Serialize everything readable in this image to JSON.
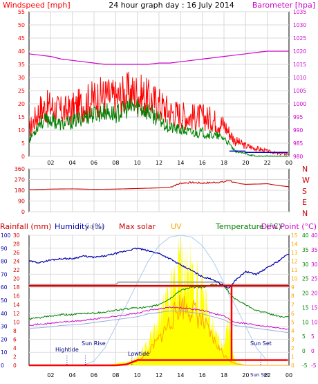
{
  "title": "24 hour graph day : 16 July 2014",
  "colors": {
    "windspeed": "#ff0000",
    "gust": "#008000",
    "barometer": "#cc00cc",
    "direction": "#cc0000",
    "rainfall": "#ff0000",
    "humidity": "#0000aa",
    "solar": "#aaaaaa",
    "maxsolar": "#aaccee",
    "uv": "#ffa500",
    "temperature": "#008000",
    "dewpoint": "#cc00cc",
    "sunfill": "#ffff00"
  },
  "x_ticks": [
    "02",
    "04",
    "06",
    "08",
    "10",
    "12",
    "14",
    "16",
    "18",
    "20",
    "22",
    "00"
  ],
  "chart_data": [
    {
      "type": "line",
      "id": "wind",
      "left_label": "Windspeed [mph]",
      "right_label": "Barometer [hpa]",
      "yticks_left": [
        "0",
        "5",
        "10",
        "15",
        "20",
        "25",
        "30",
        "35",
        "40",
        "45",
        "50",
        "55"
      ],
      "ylim_left": [
        0,
        55
      ],
      "yticks_right": [
        "980",
        "985",
        "990",
        "995",
        "1000",
        "1005",
        "1010",
        "1015",
        "1020",
        "1025",
        "1030",
        "1035"
      ],
      "ylim_right": [
        980,
        1035
      ],
      "hours": [
        0,
        1,
        2,
        3,
        4,
        5,
        6,
        7,
        8,
        9,
        10,
        11,
        12,
        13,
        14,
        15,
        16,
        17,
        18,
        19,
        20,
        21,
        22,
        23,
        24
      ],
      "series": [
        {
          "key": "windspeed",
          "values": [
            10,
            18,
            19,
            17,
            18,
            20,
            22,
            23,
            22,
            24,
            24,
            22,
            20,
            17,
            16,
            15,
            15,
            14,
            12,
            6,
            4,
            3,
            2,
            1,
            1
          ]
        },
        {
          "key": "gust",
          "values": [
            6,
            13,
            14,
            12,
            13,
            15,
            16,
            17,
            16,
            18,
            19,
            17,
            14,
            11,
            10,
            9,
            9,
            8,
            7,
            2,
            1,
            0,
            0,
            0,
            0
          ]
        },
        {
          "key": "barometer",
          "values": [
            1019,
            1018.5,
            1018,
            1017,
            1016.5,
            1016,
            1015.5,
            1015,
            1015,
            1015,
            1015,
            1015,
            1015.5,
            1015.5,
            1016,
            1016.5,
            1017,
            1017.5,
            1018,
            1018.5,
            1019,
            1019.5,
            1020,
            1020,
            1020
          ]
        }
      ]
    },
    {
      "type": "line",
      "id": "direction",
      "yticks_left": [
        "0",
        "90",
        "180",
        "270",
        "360"
      ],
      "ylim": [
        0,
        360
      ],
      "compass": [
        "N",
        "W",
        "S",
        "E",
        "N"
      ],
      "hours": [
        0,
        2,
        4,
        6,
        8,
        10,
        12,
        13,
        14,
        15,
        16,
        17,
        18,
        18.5,
        19,
        20,
        21,
        22,
        23,
        24
      ],
      "values": [
        185,
        190,
        192,
        188,
        190,
        195,
        200,
        205,
        240,
        245,
        240,
        245,
        250,
        265,
        240,
        230,
        232,
        235,
        220,
        210
      ]
    },
    {
      "type": "line",
      "id": "multi",
      "left_labels": {
        "rainfall": "Rainfall (mm)",
        "humidity": "Humidity (%)"
      },
      "solar_label": "Solar",
      "maxsolar_label": "Max solar",
      "uv_label": "UV",
      "temp_label": "Temperature (°C)",
      "dew_label": "Dew Point (°C)",
      "hum_ticks": [
        "0",
        "10",
        "20",
        "30",
        "40",
        "50",
        "60",
        "70",
        "80",
        "90",
        "100"
      ],
      "rain_ticks": [
        "0",
        "2",
        "4",
        "6",
        "8",
        "10",
        "12",
        "14",
        "16",
        "18",
        "20",
        "22",
        "24",
        "26",
        "28",
        "30"
      ],
      "uv_ticks": [
        "0",
        "1",
        "2",
        "3",
        "4",
        "5",
        "6",
        "7",
        "8",
        "9",
        "10",
        "11",
        "12",
        "13",
        "14",
        "15"
      ],
      "temp_ticks": [
        "-5",
        "0",
        "5",
        "10",
        "15",
        "20",
        "25",
        "30",
        "35",
        "40"
      ],
      "temp_ticks2": [
        "-5",
        "0",
        "5",
        "10",
        "15",
        "20",
        "25",
        "30",
        "35",
        "40"
      ],
      "ylim_humidity": [
        0,
        100
      ],
      "ylim_temp": [
        -5,
        40
      ],
      "ylim_uv": [
        0,
        15
      ],
      "ylim_rain": [
        0,
        30
      ],
      "hours": [
        0,
        1,
        2,
        3,
        4,
        5,
        6,
        7,
        8,
        9,
        10,
        11,
        12,
        13,
        14,
        15,
        16,
        17,
        18,
        18.5,
        19,
        20,
        21,
        22,
        23,
        24
      ],
      "humidity": [
        80,
        79,
        81,
        82,
        82,
        84,
        83,
        84,
        86,
        88,
        90,
        88,
        86,
        82,
        77,
        73,
        68,
        66,
        61,
        59,
        65,
        72,
        70,
        75,
        80,
        86
      ],
      "temperature": [
        11,
        11.5,
        12,
        12.5,
        12.5,
        13,
        13,
        13.5,
        14,
        14.5,
        15,
        15,
        16,
        18,
        21,
        22,
        22,
        23,
        22.5,
        20,
        18,
        16,
        14,
        13,
        12,
        11.5
      ],
      "dewpoint": [
        9,
        9.2,
        9.5,
        10,
        10.2,
        10.5,
        11,
        11.5,
        12,
        12.5,
        13,
        14,
        14.5,
        15,
        15,
        14.5,
        14,
        13,
        12,
        11,
        10,
        9.5,
        9,
        8.5,
        8,
        7.5
      ],
      "maxsolar": [
        0,
        0,
        0,
        0,
        0,
        0,
        0.5,
        2,
        4.5,
        7,
        9.5,
        12,
        13.8,
        14.8,
        15,
        14.8,
        13.8,
        12,
        9.5,
        8,
        7,
        4.5,
        2,
        0.5,
        0,
        0
      ],
      "uv": [
        0,
        0,
        0,
        0,
        0,
        0,
        0,
        0,
        0,
        0.2,
        0.5,
        1.5,
        3,
        5,
        7,
        6.5,
        5,
        3,
        1.2,
        0.6,
        0.2,
        0,
        0,
        0,
        0,
        0
      ],
      "solar_fill": [
        0,
        0,
        0,
        0,
        0,
        0,
        0,
        0,
        0.2,
        0.4,
        1,
        3,
        6,
        9,
        14,
        12,
        9,
        5,
        2,
        6,
        0.5,
        0,
        0,
        0,
        0,
        0
      ],
      "rain_rate": [
        0,
        0,
        0,
        0,
        0,
        0,
        0,
        0,
        0,
        0,
        0,
        0,
        0,
        0,
        0,
        0,
        0,
        0,
        0,
        5,
        0,
        0,
        0,
        0,
        0,
        0
      ],
      "rain_total": [
        0,
        0,
        0,
        0,
        0,
        0,
        0,
        0,
        0,
        0.2,
        1.2,
        1.2,
        1.2,
        1.2,
        1.2,
        1.2,
        1.2,
        1.2,
        1.2,
        1.2,
        1.2,
        1.2,
        1.2,
        1.2,
        1.2,
        1.2
      ],
      "maxsolar_line": 22.5,
      "annotations": {
        "hightide": "Hightide",
        "sunrise": "Sun Rise",
        "lowtide": "Lowtide",
        "sunset": "Sun Set",
        "sunset_bottom": "Sun Set",
        "hightide_h": 3.5,
        "sunrise_h": 5.2,
        "lowtide_h": 9.5,
        "sunset_h": 21.4
      }
    }
  ]
}
